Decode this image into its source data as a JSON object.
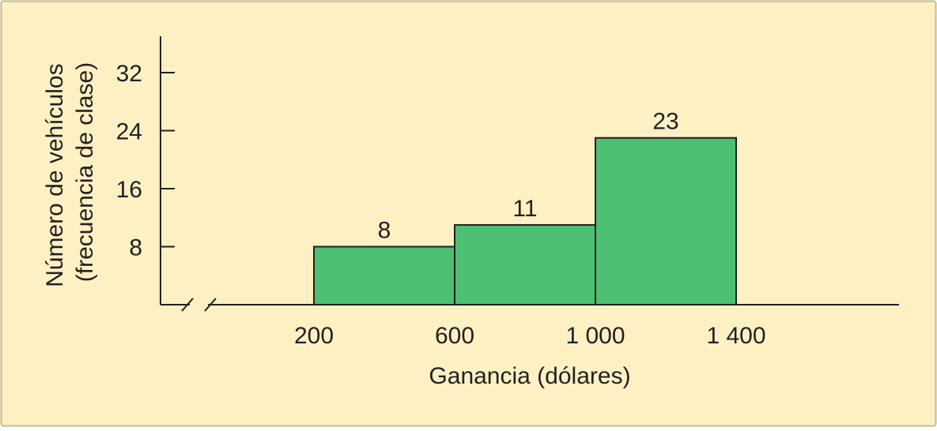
{
  "chart_data": {
    "type": "bar",
    "subtype": "histogram",
    "bins": [
      {
        "from": 200,
        "to": 600,
        "value": 8
      },
      {
        "from": 600,
        "to": 1000,
        "value": 11
      },
      {
        "from": 1000,
        "to": 1400,
        "value": 23
      }
    ],
    "values": [
      8,
      11,
      23
    ],
    "data_labels": [
      "8",
      "11",
      "23"
    ],
    "x_ticks": [
      {
        "value": 200,
        "label": "200"
      },
      {
        "value": 600,
        "label": "600"
      },
      {
        "value": 1000,
        "label": "1 000"
      },
      {
        "value": 1400,
        "label": "1 400"
      }
    ],
    "y_ticks": [
      {
        "value": 8,
        "label": "8"
      },
      {
        "value": 16,
        "label": "16"
      },
      {
        "value": 24,
        "label": "24"
      },
      {
        "value": 32,
        "label": "32"
      }
    ],
    "xlabel": "Ganancia (dólares)",
    "ylabel": [
      "Número de vehículos",
      "(frecuencia de clase)"
    ],
    "ylim": [
      0,
      32
    ],
    "x_axis_break": true,
    "grid": false,
    "colors": {
      "background": "#fdf1c3",
      "border": "#c9b987",
      "bar_fill": "#4cbf72",
      "bar_stroke": "#231f20",
      "axis": "#231f20"
    }
  }
}
